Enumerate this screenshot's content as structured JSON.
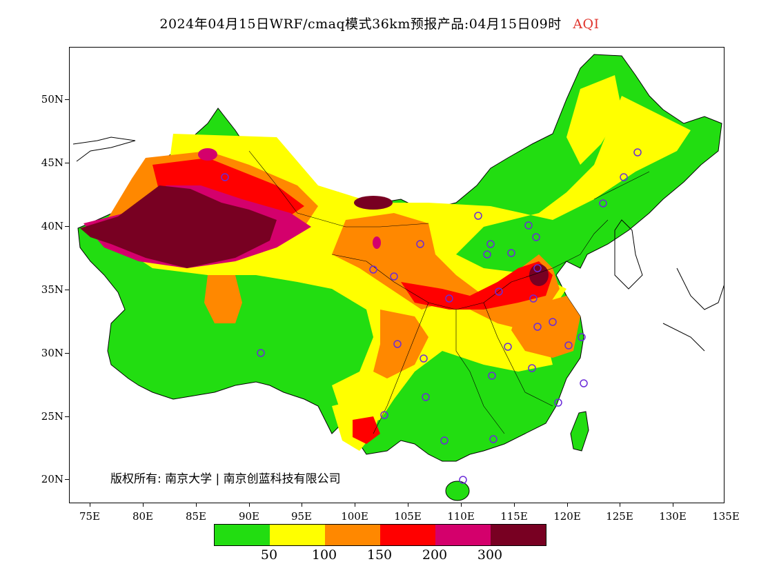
{
  "header": {
    "title": "2024年04月15日WRF/cmaq模式36km预报产品:04月15日09时",
    "variable": "AQI",
    "variable_color": "#e0342c"
  },
  "map": {
    "y_ticks": [
      "50N",
      "45N",
      "40N",
      "35N",
      "30N",
      "25N",
      "20N"
    ],
    "x_ticks": [
      "75E",
      "80E",
      "85E",
      "90E",
      "95E",
      "100E",
      "105E",
      "110E",
      "115E",
      "120E",
      "125E",
      "130E",
      "135E"
    ],
    "copyright": "版权所有: 南京大学 | 南京创蓝科技有限公司",
    "station_marker_color": "#6a2bd9"
  },
  "legend": {
    "colors": [
      "#22dd11",
      "#ffff00",
      "#ff8800",
      "#ff0000",
      "#d4006c",
      "#780022"
    ],
    "labels": [
      "50",
      "100",
      "150",
      "200",
      "300"
    ]
  }
}
